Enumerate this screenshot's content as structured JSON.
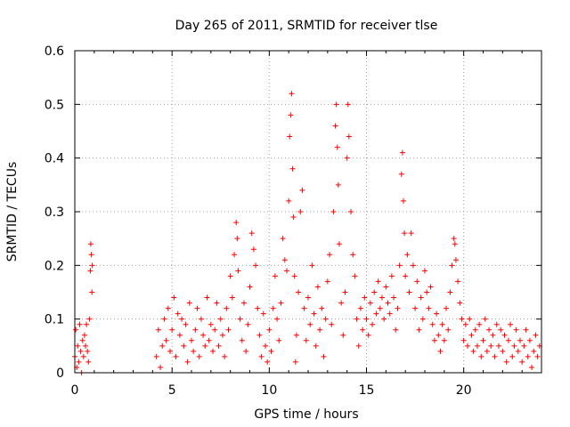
{
  "chart_data": {
    "type": "scatter",
    "title": "Day 265 of 2011, SRMTID for receiver tlse",
    "xlabel": "GPS time / hours",
    "ylabel": "SRMTID / TECUs",
    "xlim": [
      0,
      24
    ],
    "ylim": [
      0,
      0.6
    ],
    "grid": true,
    "x_ticks": [
      0,
      5,
      10,
      15,
      20
    ],
    "x_tick_labels": [
      "0",
      "5",
      "10",
      "15",
      "20"
    ],
    "y_ticks": [
      0,
      0.1,
      0.2,
      0.3,
      0.4,
      0.5,
      0.6
    ],
    "y_tick_labels": [
      "0",
      "0.1",
      "0.2",
      "0.3",
      "0.4",
      "0.5",
      "0.6"
    ],
    "marker": "+",
    "color": "#ff0000",
    "series": [
      {
        "name": "SRMTID",
        "points": [
          [
            0.0,
            0.03
          ],
          [
            0.05,
            0.08
          ],
          [
            0.1,
            0.01
          ],
          [
            0.15,
            0.05
          ],
          [
            0.2,
            0.02
          ],
          [
            0.25,
            0.09
          ],
          [
            0.3,
            0.04
          ],
          [
            0.35,
            0.0
          ],
          [
            0.4,
            0.06
          ],
          [
            0.45,
            0.03
          ],
          [
            0.5,
            0.07
          ],
          [
            0.55,
            0.05
          ],
          [
            0.6,
            0.09
          ],
          [
            0.65,
            0.04
          ],
          [
            0.7,
            0.02
          ],
          [
            0.75,
            0.1
          ],
          [
            0.8,
            0.19
          ],
          [
            0.82,
            0.24
          ],
          [
            0.85,
            0.22
          ],
          [
            0.88,
            0.15
          ],
          [
            0.9,
            0.2
          ],
          [
            4.2,
            0.03
          ],
          [
            4.3,
            0.08
          ],
          [
            4.4,
            0.01
          ],
          [
            4.5,
            0.05
          ],
          [
            4.6,
            0.1
          ],
          [
            4.7,
            0.06
          ],
          [
            4.8,
            0.12
          ],
          [
            4.9,
            0.04
          ],
          [
            5.0,
            0.08
          ],
          [
            5.1,
            0.14
          ],
          [
            5.2,
            0.03
          ],
          [
            5.3,
            0.11
          ],
          [
            5.4,
            0.07
          ],
          [
            5.5,
            0.1
          ],
          [
            5.6,
            0.05
          ],
          [
            5.7,
            0.09
          ],
          [
            5.8,
            0.02
          ],
          [
            5.9,
            0.13
          ],
          [
            6.0,
            0.06
          ],
          [
            6.1,
            0.04
          ],
          [
            6.2,
            0.08
          ],
          [
            6.3,
            0.12
          ],
          [
            6.4,
            0.03
          ],
          [
            6.5,
            0.1
          ],
          [
            6.6,
            0.07
          ],
          [
            6.7,
            0.05
          ],
          [
            6.8,
            0.14
          ],
          [
            6.9,
            0.06
          ],
          [
            7.0,
            0.09
          ],
          [
            7.1,
            0.04
          ],
          [
            7.2,
            0.08
          ],
          [
            7.3,
            0.13
          ],
          [
            7.4,
            0.05
          ],
          [
            7.5,
            0.1
          ],
          [
            7.6,
            0.07
          ],
          [
            7.7,
            0.03
          ],
          [
            7.8,
            0.12
          ],
          [
            7.9,
            0.08
          ],
          [
            8.0,
            0.18
          ],
          [
            8.1,
            0.14
          ],
          [
            8.2,
            0.22
          ],
          [
            8.3,
            0.28
          ],
          [
            8.35,
            0.25
          ],
          [
            8.4,
            0.19
          ],
          [
            8.5,
            0.1
          ],
          [
            8.6,
            0.06
          ],
          [
            8.7,
            0.13
          ],
          [
            8.8,
            0.04
          ],
          [
            8.9,
            0.09
          ],
          [
            9.0,
            0.16
          ],
          [
            9.1,
            0.26
          ],
          [
            9.2,
            0.23
          ],
          [
            9.3,
            0.2
          ],
          [
            9.4,
            0.12
          ],
          [
            9.5,
            0.07
          ],
          [
            9.6,
            0.03
          ],
          [
            9.7,
            0.11
          ],
          [
            9.8,
            0.05
          ],
          [
            9.9,
            0.02
          ],
          [
            10.0,
            0.08
          ],
          [
            10.1,
            0.04
          ],
          [
            10.2,
            0.12
          ],
          [
            10.3,
            0.18
          ],
          [
            10.4,
            0.1
          ],
          [
            10.5,
            0.06
          ],
          [
            10.6,
            0.13
          ],
          [
            10.7,
            0.25
          ],
          [
            10.8,
            0.21
          ],
          [
            10.9,
            0.19
          ],
          [
            11.0,
            0.32
          ],
          [
            11.05,
            0.44
          ],
          [
            11.1,
            0.48
          ],
          [
            11.15,
            0.52
          ],
          [
            11.2,
            0.38
          ],
          [
            11.25,
            0.29
          ],
          [
            11.3,
            0.18
          ],
          [
            11.35,
            0.02
          ],
          [
            11.4,
            0.07
          ],
          [
            11.5,
            0.15
          ],
          [
            11.6,
            0.3
          ],
          [
            11.7,
            0.34
          ],
          [
            11.8,
            0.12
          ],
          [
            11.9,
            0.06
          ],
          [
            12.0,
            0.14
          ],
          [
            12.1,
            0.09
          ],
          [
            12.2,
            0.2
          ],
          [
            12.3,
            0.11
          ],
          [
            12.4,
            0.05
          ],
          [
            12.5,
            0.16
          ],
          [
            12.6,
            0.08
          ],
          [
            12.7,
            0.12
          ],
          [
            12.8,
            0.03
          ],
          [
            12.9,
            0.1
          ],
          [
            13.0,
            0.17
          ],
          [
            13.1,
            0.22
          ],
          [
            13.2,
            0.09
          ],
          [
            13.3,
            0.3
          ],
          [
            13.4,
            0.46
          ],
          [
            13.45,
            0.5
          ],
          [
            13.5,
            0.42
          ],
          [
            13.55,
            0.35
          ],
          [
            13.6,
            0.24
          ],
          [
            13.7,
            0.13
          ],
          [
            13.8,
            0.07
          ],
          [
            13.9,
            0.15
          ],
          [
            14.0,
            0.4
          ],
          [
            14.05,
            0.5
          ],
          [
            14.1,
            0.44
          ],
          [
            14.2,
            0.3
          ],
          [
            14.3,
            0.22
          ],
          [
            14.4,
            0.18
          ],
          [
            14.5,
            0.1
          ],
          [
            14.6,
            0.05
          ],
          [
            14.7,
            0.12
          ],
          [
            14.8,
            0.08
          ],
          [
            14.9,
            0.14
          ],
          [
            15.0,
            0.1
          ],
          [
            15.1,
            0.07
          ],
          [
            15.2,
            0.13
          ],
          [
            15.3,
            0.09
          ],
          [
            15.4,
            0.15
          ],
          [
            15.5,
            0.11
          ],
          [
            15.6,
            0.17
          ],
          [
            15.7,
            0.12
          ],
          [
            15.8,
            0.14
          ],
          [
            15.9,
            0.1
          ],
          [
            16.0,
            0.16
          ],
          [
            16.1,
            0.13
          ],
          [
            16.2,
            0.11
          ],
          [
            16.3,
            0.18
          ],
          [
            16.4,
            0.14
          ],
          [
            16.5,
            0.08
          ],
          [
            16.6,
            0.12
          ],
          [
            16.7,
            0.2
          ],
          [
            16.8,
            0.37
          ],
          [
            16.85,
            0.41
          ],
          [
            16.9,
            0.32
          ],
          [
            16.95,
            0.26
          ],
          [
            17.0,
            0.18
          ],
          [
            17.1,
            0.22
          ],
          [
            17.2,
            0.15
          ],
          [
            17.3,
            0.26
          ],
          [
            17.4,
            0.2
          ],
          [
            17.5,
            0.12
          ],
          [
            17.6,
            0.17
          ],
          [
            17.7,
            0.08
          ],
          [
            17.8,
            0.14
          ],
          [
            17.9,
            0.1
          ],
          [
            18.0,
            0.19
          ],
          [
            18.1,
            0.15
          ],
          [
            18.2,
            0.12
          ],
          [
            18.3,
            0.16
          ],
          [
            18.4,
            0.09
          ],
          [
            18.5,
            0.06
          ],
          [
            18.6,
            0.11
          ],
          [
            18.7,
            0.07
          ],
          [
            18.8,
            0.04
          ],
          [
            18.9,
            0.09
          ],
          [
            19.0,
            0.06
          ],
          [
            19.1,
            0.12
          ],
          [
            19.2,
            0.08
          ],
          [
            19.3,
            0.15
          ],
          [
            19.4,
            0.2
          ],
          [
            19.5,
            0.25
          ],
          [
            19.55,
            0.24
          ],
          [
            19.6,
            0.21
          ],
          [
            19.7,
            0.17
          ],
          [
            19.8,
            0.13
          ],
          [
            19.9,
            0.1
          ],
          [
            20.0,
            0.06
          ],
          [
            20.1,
            0.09
          ],
          [
            20.2,
            0.05
          ],
          [
            20.3,
            0.1
          ],
          [
            20.4,
            0.07
          ],
          [
            20.5,
            0.04
          ],
          [
            20.6,
            0.08
          ],
          [
            20.7,
            0.05
          ],
          [
            20.8,
            0.09
          ],
          [
            20.9,
            0.03
          ],
          [
            21.0,
            0.06
          ],
          [
            21.1,
            0.1
          ],
          [
            21.2,
            0.04
          ],
          [
            21.3,
            0.08
          ],
          [
            21.4,
            0.05
          ],
          [
            21.5,
            0.07
          ],
          [
            21.6,
            0.03
          ],
          [
            21.7,
            0.09
          ],
          [
            21.8,
            0.05
          ],
          [
            21.9,
            0.08
          ],
          [
            22.0,
            0.04
          ],
          [
            22.1,
            0.07
          ],
          [
            22.2,
            0.02
          ],
          [
            22.3,
            0.06
          ],
          [
            22.4,
            0.09
          ],
          [
            22.5,
            0.03
          ],
          [
            22.6,
            0.05
          ],
          [
            22.7,
            0.08
          ],
          [
            22.8,
            0.04
          ],
          [
            22.9,
            0.06
          ],
          [
            23.0,
            0.02
          ],
          [
            23.1,
            0.05
          ],
          [
            23.2,
            0.08
          ],
          [
            23.3,
            0.03
          ],
          [
            23.4,
            0.06
          ],
          [
            23.5,
            0.01
          ],
          [
            23.6,
            0.04
          ],
          [
            23.7,
            0.07
          ],
          [
            23.8,
            0.03
          ],
          [
            23.9,
            0.05
          ]
        ]
      }
    ]
  }
}
